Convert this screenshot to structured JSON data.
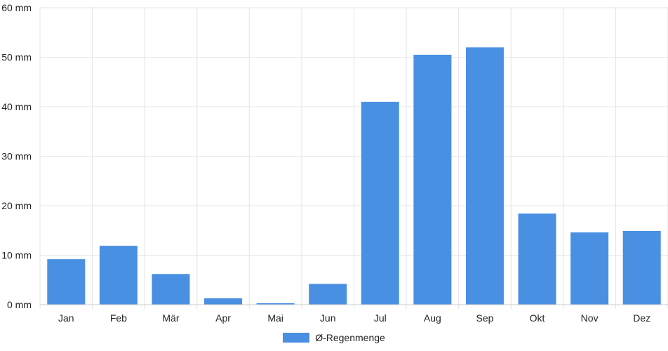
{
  "chart_data": {
    "type": "bar",
    "categories": [
      "Jan",
      "Feb",
      "Mär",
      "Apr",
      "Mai",
      "Jun",
      "Jul",
      "Aug",
      "Sep",
      "Okt",
      "Nov",
      "Dez"
    ],
    "series": [
      {
        "name": "Ø-Regenmenge",
        "values": [
          9.2,
          11.9,
          6.2,
          1.3,
          0.3,
          4.2,
          41.0,
          50.5,
          52.0,
          18.4,
          14.6,
          14.9
        ],
        "color": "#4a90e2"
      }
    ],
    "y_ticks": [
      "0 mm",
      "10 mm",
      "20 mm",
      "30 mm",
      "40 mm",
      "50 mm",
      "60 mm"
    ],
    "ylim": [
      0,
      60
    ],
    "y_step": 10,
    "grid": true,
    "legend_position": "bottom-center"
  }
}
